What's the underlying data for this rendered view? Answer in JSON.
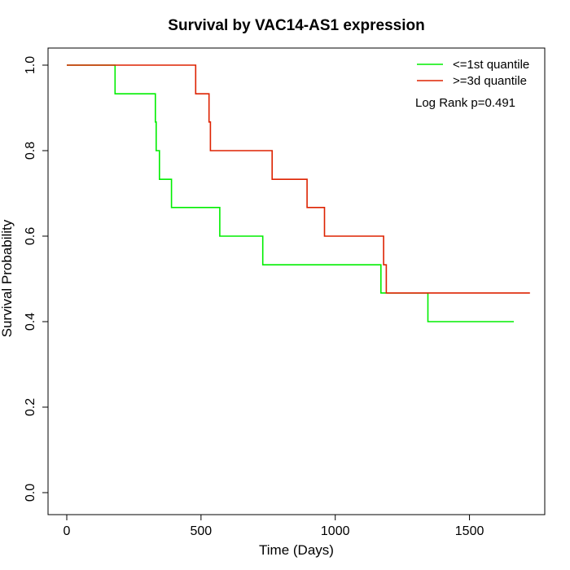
{
  "chart_data": {
    "type": "line",
    "title": "Survival by VAC14-AS1 expression",
    "xlabel": "Time (Days)",
    "ylabel": "Survival Probability",
    "xlim": [
      0,
      1750
    ],
    "ylim": [
      0,
      1.0
    ],
    "xticks": [
      0,
      500,
      1000,
      1500
    ],
    "yticks": [
      0.0,
      0.2,
      0.4,
      0.6,
      0.8,
      1.0
    ],
    "ytick_labels": [
      "0.0",
      "0.2",
      "0.4",
      "0.6",
      "0.8",
      "1.0"
    ],
    "grid": false,
    "legend_position": "top-right",
    "annotation": "Log Rank p=0.491",
    "series": [
      {
        "name": "<=1st quantile",
        "color": "#00ee00",
        "step": true,
        "x": [
          0,
          180,
          180,
          330,
          330,
          333,
          333,
          345,
          345,
          390,
          390,
          570,
          570,
          730,
          730,
          1170,
          1170,
          1345,
          1345,
          1665
        ],
        "y": [
          1.0,
          1.0,
          0.933,
          0.933,
          0.867,
          0.867,
          0.8,
          0.8,
          0.733,
          0.733,
          0.667,
          0.667,
          0.6,
          0.6,
          0.533,
          0.533,
          0.467,
          0.467,
          0.4,
          0.4
        ]
      },
      {
        "name": ">=3d quantile",
        "color": "#dd2200",
        "step": true,
        "x": [
          0,
          480,
          480,
          530,
          530,
          535,
          535,
          765,
          765,
          895,
          895,
          960,
          960,
          1180,
          1180,
          1190,
          1190,
          1725
        ],
        "y": [
          1.0,
          1.0,
          0.933,
          0.933,
          0.867,
          0.867,
          0.8,
          0.8,
          0.733,
          0.733,
          0.667,
          0.667,
          0.6,
          0.6,
          0.533,
          0.533,
          0.467,
          0.467
        ]
      }
    ]
  }
}
